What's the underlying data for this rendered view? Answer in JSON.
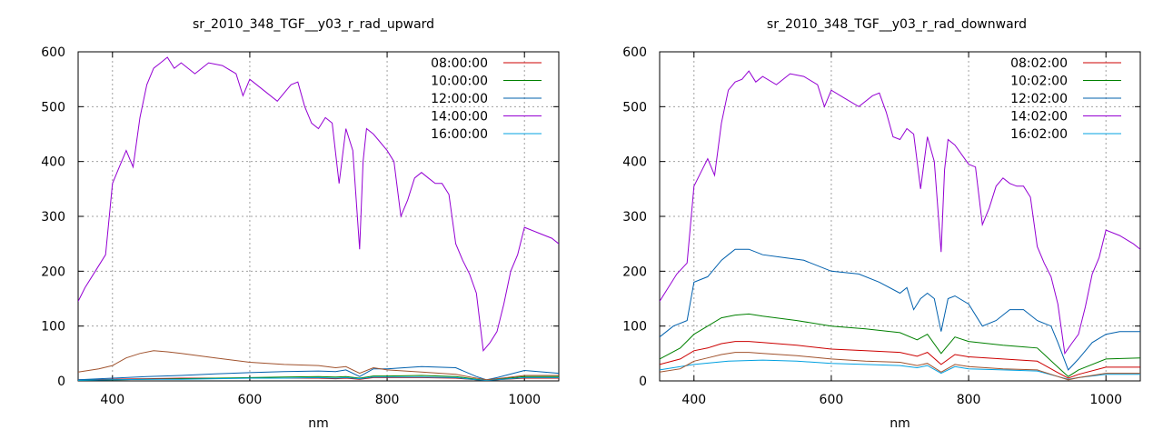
{
  "chart_data": [
    {
      "type": "line",
      "title": "sr_2010_348_TGF__y03_r_rad_upward",
      "xlabel": "nm",
      "ylabel": "",
      "xlim": [
        350,
        1050
      ],
      "ylim": [
        0,
        600
      ],
      "x_ticks": [
        400,
        600,
        800,
        1000
      ],
      "y_ticks": [
        0,
        100,
        200,
        300,
        400,
        500,
        600
      ],
      "grid": true,
      "legend_position": "top-right",
      "series": [
        {
          "name": "08:00:00",
          "color": "#cc0000",
          "x": [
            350,
            400,
            450,
            500,
            550,
            600,
            650,
            700,
            725,
            740,
            760,
            780,
            800,
            850,
            900,
            930,
            945,
            960,
            1000,
            1050
          ],
          "y": [
            2,
            3,
            4,
            5,
            5,
            5,
            5,
            5,
            4,
            5,
            3,
            6,
            6,
            6,
            5,
            2,
            1,
            2,
            5,
            5
          ]
        },
        {
          "name": "10:00:00",
          "color": "#008000",
          "x": [
            350,
            400,
            450,
            500,
            550,
            600,
            650,
            700,
            725,
            740,
            760,
            780,
            800,
            850,
            900,
            930,
            945,
            960,
            1000,
            1050
          ],
          "y": [
            1,
            2,
            3,
            4,
            5,
            6,
            7,
            8,
            7,
            8,
            5,
            9,
            9,
            10,
            8,
            3,
            1,
            3,
            8,
            8
          ]
        },
        {
          "name": "12:00:00",
          "color": "#0060ad",
          "x": [
            350,
            400,
            450,
            500,
            550,
            600,
            650,
            700,
            725,
            740,
            760,
            780,
            800,
            850,
            900,
            930,
            945,
            960,
            1000,
            1050
          ],
          "y": [
            2,
            5,
            8,
            10,
            13,
            15,
            17,
            18,
            17,
            20,
            8,
            22,
            22,
            26,
            24,
            8,
            2,
            6,
            19,
            14
          ]
        },
        {
          "name": "14:00:00",
          "color": "#9400d3",
          "x": [
            350,
            360,
            375,
            390,
            400,
            410,
            420,
            430,
            440,
            450,
            460,
            470,
            480,
            490,
            500,
            520,
            540,
            560,
            580,
            590,
            600,
            620,
            640,
            660,
            670,
            680,
            690,
            700,
            710,
            720,
            730,
            740,
            750,
            760,
            765,
            770,
            780,
            800,
            810,
            820,
            830,
            840,
            850,
            860,
            870,
            880,
            890,
            900,
            910,
            920,
            930,
            940,
            950,
            960,
            970,
            980,
            990,
            1000,
            1020,
            1040,
            1050
          ],
          "y": [
            145,
            170,
            200,
            230,
            360,
            390,
            420,
            390,
            480,
            540,
            570,
            580,
            590,
            570,
            580,
            560,
            580,
            575,
            560,
            520,
            550,
            530,
            510,
            540,
            545,
            500,
            470,
            460,
            480,
            470,
            360,
            460,
            420,
            240,
            400,
            460,
            450,
            420,
            400,
            300,
            330,
            370,
            380,
            370,
            360,
            360,
            340,
            250,
            220,
            195,
            160,
            55,
            70,
            90,
            140,
            200,
            230,
            280,
            270,
            260,
            250
          ]
        },
        {
          "name": "16:00:00",
          "color": "#00a0e0",
          "x": [
            350,
            400,
            450,
            500,
            550,
            600,
            650,
            700,
            725,
            740,
            760,
            780,
            800,
            850,
            900,
            930,
            945,
            960,
            1000,
            1050
          ],
          "y": [
            1,
            2,
            3,
            3,
            4,
            5,
            5,
            6,
            5,
            6,
            4,
            7,
            7,
            7,
            6,
            2,
            1,
            2,
            6,
            6
          ]
        },
        {
          "name": "",
          "color": "#a0522d",
          "x": [
            350,
            380,
            400,
            420,
            440,
            460,
            480,
            500,
            550,
            600,
            650,
            700,
            725,
            740,
            760,
            780,
            800,
            850,
            900,
            930,
            945,
            960,
            1000,
            1050
          ],
          "y": [
            16,
            22,
            28,
            42,
            50,
            55,
            53,
            50,
            42,
            34,
            30,
            28,
            24,
            26,
            14,
            24,
            20,
            16,
            12,
            5,
            2,
            4,
            10,
            10
          ]
        }
      ]
    },
    {
      "type": "line",
      "title": "sr_2010_348_TGF__y03_r_rad_downward",
      "xlabel": "nm",
      "ylabel": "",
      "xlim": [
        350,
        1050
      ],
      "ylim": [
        0,
        600
      ],
      "x_ticks": [
        400,
        600,
        800,
        1000
      ],
      "y_ticks": [
        0,
        100,
        200,
        300,
        400,
        500,
        600
      ],
      "grid": true,
      "legend_position": "top-right",
      "series": [
        {
          "name": "08:02:00",
          "color": "#cc0000",
          "x": [
            350,
            380,
            400,
            420,
            440,
            460,
            480,
            500,
            550,
            600,
            650,
            700,
            725,
            740,
            760,
            780,
            800,
            850,
            900,
            930,
            945,
            960,
            1000,
            1050
          ],
          "y": [
            30,
            40,
            55,
            60,
            68,
            72,
            72,
            70,
            65,
            58,
            55,
            52,
            45,
            52,
            30,
            48,
            44,
            40,
            36,
            15,
            5,
            12,
            25,
            25
          ]
        },
        {
          "name": "10:02:00",
          "color": "#008000",
          "x": [
            350,
            380,
            400,
            420,
            440,
            460,
            480,
            500,
            550,
            600,
            650,
            700,
            725,
            740,
            760,
            780,
            800,
            850,
            900,
            930,
            945,
            960,
            1000,
            1050
          ],
          "y": [
            40,
            60,
            85,
            100,
            115,
            120,
            122,
            118,
            110,
            100,
            95,
            88,
            75,
            85,
            50,
            80,
            72,
            65,
            60,
            25,
            8,
            20,
            40,
            42
          ]
        },
        {
          "name": "12:02:00",
          "color": "#0060ad",
          "x": [
            350,
            370,
            390,
            400,
            420,
            440,
            450,
            460,
            480,
            500,
            530,
            560,
            600,
            640,
            670,
            700,
            710,
            720,
            730,
            740,
            750,
            760,
            770,
            780,
            800,
            820,
            840,
            860,
            880,
            900,
            920,
            930,
            945,
            960,
            980,
            1000,
            1020,
            1050
          ],
          "y": [
            80,
            100,
            110,
            180,
            190,
            220,
            230,
            240,
            240,
            230,
            225,
            220,
            200,
            195,
            180,
            160,
            170,
            130,
            150,
            160,
            150,
            90,
            150,
            155,
            140,
            100,
            110,
            130,
            130,
            110,
            100,
            70,
            20,
            40,
            70,
            85,
            90,
            90
          ]
        },
        {
          "name": "14:02:00",
          "color": "#9400d3",
          "x": [
            350,
            360,
            375,
            390,
            400,
            410,
            420,
            430,
            440,
            450,
            460,
            470,
            480,
            490,
            500,
            520,
            540,
            560,
            580,
            590,
            600,
            620,
            640,
            660,
            670,
            680,
            690,
            700,
            710,
            720,
            730,
            740,
            750,
            760,
            765,
            770,
            780,
            800,
            810,
            820,
            830,
            840,
            850,
            860,
            870,
            880,
            890,
            900,
            910,
            920,
            930,
            940,
            950,
            960,
            970,
            980,
            990,
            1000,
            1020,
            1040,
            1050
          ],
          "y": [
            145,
            165,
            195,
            215,
            355,
            380,
            405,
            375,
            470,
            530,
            545,
            550,
            565,
            545,
            555,
            540,
            560,
            555,
            540,
            500,
            530,
            515,
            500,
            520,
            525,
            490,
            445,
            440,
            460,
            450,
            350,
            445,
            400,
            235,
            385,
            440,
            430,
            395,
            390,
            285,
            315,
            355,
            370,
            360,
            355,
            355,
            335,
            245,
            215,
            190,
            140,
            50,
            68,
            85,
            135,
            195,
            225,
            275,
            265,
            250,
            240
          ]
        },
        {
          "name": "16:02:00",
          "color": "#00a0e0",
          "x": [
            350,
            400,
            450,
            500,
            550,
            600,
            650,
            700,
            725,
            740,
            760,
            780,
            800,
            850,
            900,
            930,
            945,
            960,
            1000,
            1050
          ],
          "y": [
            20,
            30,
            36,
            38,
            36,
            32,
            30,
            28,
            24,
            28,
            14,
            26,
            22,
            20,
            18,
            8,
            3,
            6,
            12,
            12
          ]
        },
        {
          "name": "",
          "color": "#a0522d",
          "x": [
            350,
            380,
            400,
            420,
            440,
            460,
            480,
            500,
            550,
            600,
            650,
            700,
            725,
            740,
            760,
            780,
            800,
            850,
            900,
            930,
            945,
            960,
            1000,
            1050
          ],
          "y": [
            16,
            22,
            36,
            42,
            48,
            52,
            52,
            50,
            46,
            40,
            36,
            34,
            28,
            32,
            16,
            30,
            26,
            22,
            20,
            8,
            2,
            6,
            14,
            14
          ]
        }
      ]
    }
  ]
}
